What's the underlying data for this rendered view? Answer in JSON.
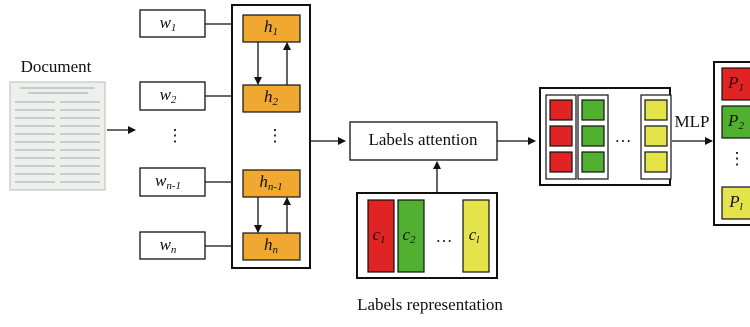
{
  "document": {
    "label": "Document"
  },
  "inputs": {
    "items": [
      {
        "base": "w",
        "sub": "1"
      },
      {
        "base": "w",
        "sub": "2"
      },
      {
        "base": "w",
        "sub": "n-1"
      },
      {
        "base": "w",
        "sub": "n"
      }
    ],
    "ellipsis": "⋮"
  },
  "hidden": {
    "items": [
      {
        "base": "h",
        "sub": "1"
      },
      {
        "base": "h",
        "sub": "2"
      },
      {
        "base": "h",
        "sub": "n-1"
      },
      {
        "base": "h",
        "sub": "n"
      }
    ],
    "ellipsis": "⋮"
  },
  "attention": {
    "label": "Labels attention"
  },
  "labels": {
    "caption": "Labels representation",
    "items": [
      {
        "base": "c",
        "sub": "1"
      },
      {
        "base": "c",
        "sub": "2"
      },
      {
        "base": "c",
        "sub": "l"
      }
    ],
    "ellipsis": "…"
  },
  "matrix": {
    "ellipsis": "…"
  },
  "mlp": {
    "label": "MLP"
  },
  "outputs": {
    "items": [
      {
        "base": "P",
        "sub": "1"
      },
      {
        "base": "P",
        "sub": "2"
      },
      {
        "base": "P",
        "sub": "l"
      }
    ],
    "ellipsis": "⋮"
  }
}
